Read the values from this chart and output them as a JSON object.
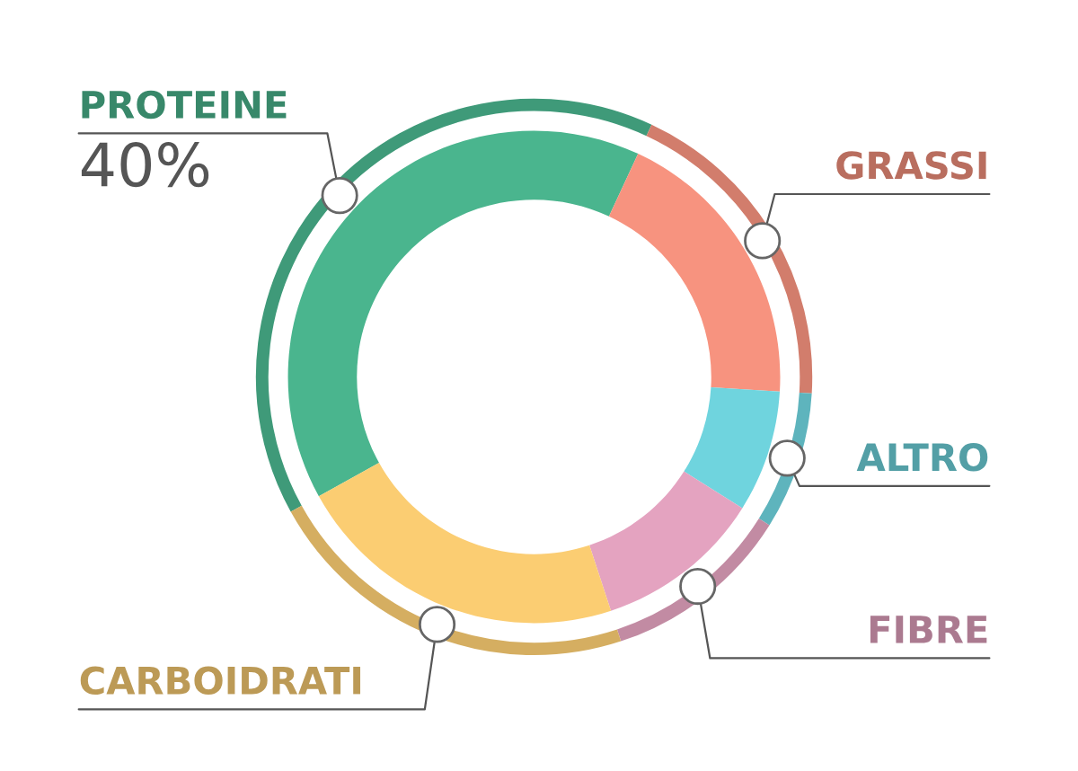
{
  "chart_data": {
    "type": "donut",
    "categories": [
      "PROTEINE",
      "GRASSI",
      "ALTRO",
      "FIBRE",
      "CARBOIDRATI"
    ],
    "values": [
      40,
      19,
      8,
      11,
      22
    ],
    "colors": [
      "#4ab58e",
      "#f7937f",
      "#6fd4de",
      "#e4a3c0",
      "#fbcd72"
    ],
    "value_labels": [
      "40%",
      null,
      null,
      null,
      null
    ],
    "legend": false
  }
}
